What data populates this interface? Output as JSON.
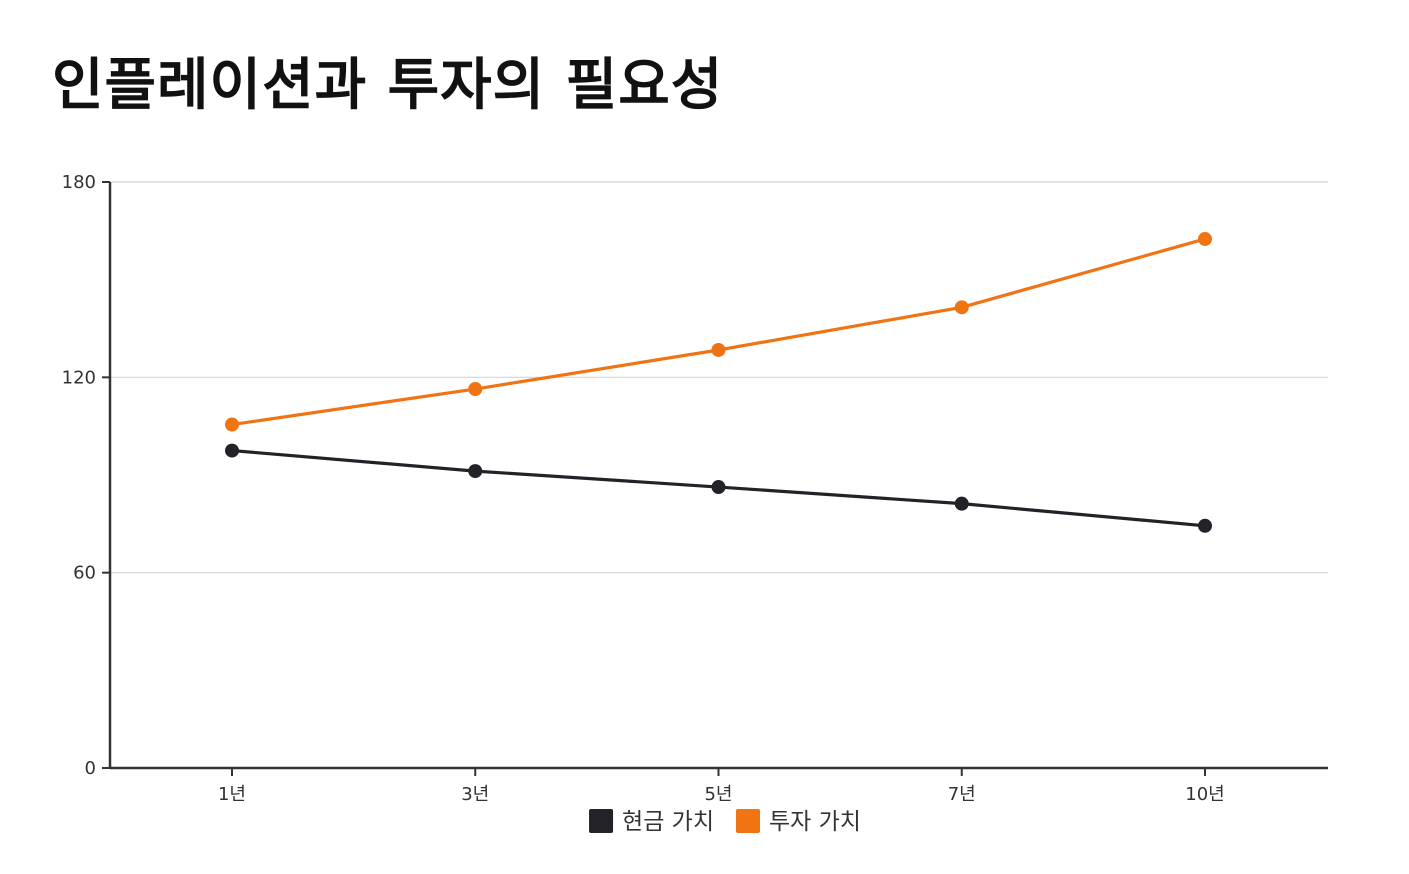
{
  "chart_data": {
    "type": "line",
    "title": "인플레이션과 투자의 필요성",
    "xlabel": "",
    "ylabel": "",
    "categories": [
      "1년",
      "3년",
      "5년",
      "7년",
      "10년"
    ],
    "ylim": [
      0,
      180
    ],
    "yticks": [
      0,
      60,
      120,
      180
    ],
    "grid": true,
    "legend_position": "bottom",
    "series": [
      {
        "name": "현금 가치",
        "color": "#222228",
        "values": [
          97.5,
          91.2,
          86.3,
          81.2,
          74.4
        ]
      },
      {
        "name": "투자 가치",
        "color": "#f07314",
        "values": [
          105.5,
          116.4,
          128.4,
          141.5,
          162.5
        ]
      }
    ]
  }
}
